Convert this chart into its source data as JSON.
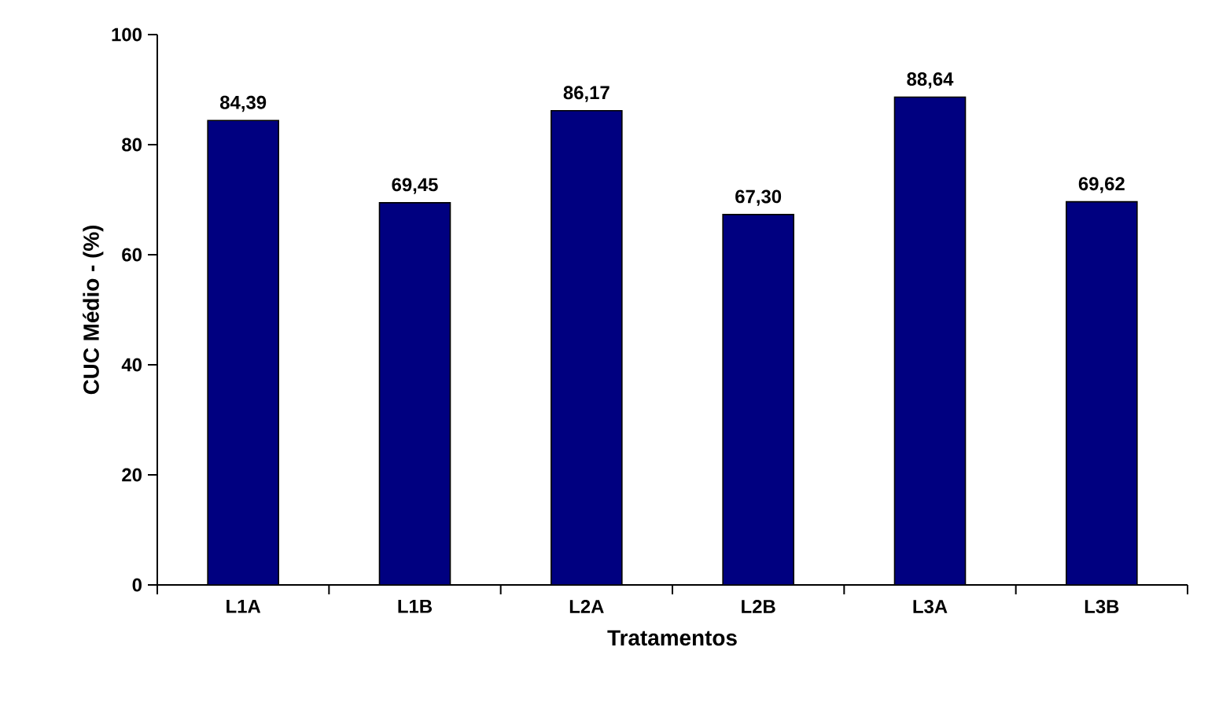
{
  "chart_data": {
    "type": "bar",
    "xlabel": "Tratamentos",
    "ylabel": "CUC Médio - (%)",
    "categories": [
      "L1A",
      "L1B",
      "L2A",
      "L2B",
      "L3A",
      "L3B"
    ],
    "values": [
      84.39,
      69.45,
      86.17,
      67.3,
      88.64,
      69.62
    ],
    "value_labels": [
      "84,39",
      "69,45",
      "86,17",
      "67,30",
      "88,64",
      "69,62"
    ],
    "color": "#000080",
    "ylim": [
      0,
      100
    ],
    "yticks": [
      0,
      20,
      40,
      60,
      80,
      100
    ]
  }
}
